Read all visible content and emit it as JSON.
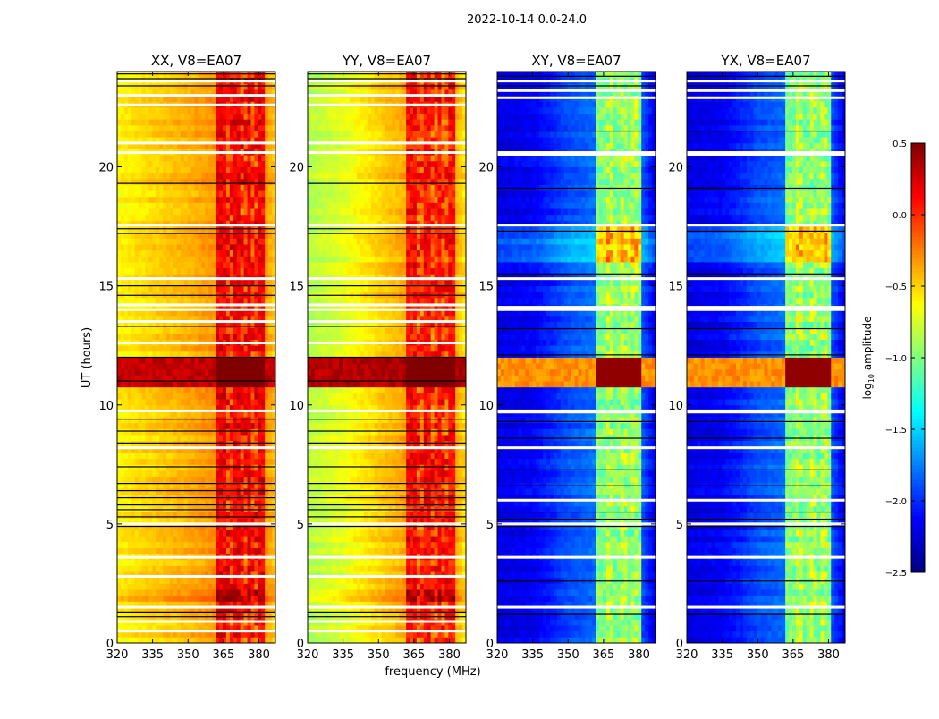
{
  "chart_data": {
    "type": "heatmap",
    "title": "2022-10-14 0.0-24.0",
    "xlabel": "frequency (MHz)",
    "ylabel": "UT (hours)",
    "xlim": [
      320,
      387
    ],
    "ylim": [
      0,
      24
    ],
    "xticks": [
      320,
      335,
      350,
      365,
      380
    ],
    "yticks": [
      0,
      5,
      10,
      15,
      20
    ],
    "colorbar": {
      "label": "log10 amplitude",
      "label_main": "log",
      "label_sub": "10",
      "label_rest": " amplitude",
      "range": [
        -2.5,
        0.5
      ],
      "ticks": [
        "0.5",
        "0.0",
        "−0.5",
        "−1.0",
        "−1.5",
        "−2.0",
        "−2.5"
      ],
      "tick_values": [
        0.5,
        0.0,
        -0.5,
        -1.0,
        -1.5,
        -2.0,
        -2.5
      ],
      "colormap": "jet"
    },
    "panels": [
      {
        "title": "XX, V8=EA07",
        "base_freq": [
          320,
          335,
          350,
          362,
          382,
          387
        ],
        "base_level": [
          -0.6,
          -0.5,
          -0.4,
          -0.3,
          -0.3,
          -0.45
        ],
        "band_range": [
          362,
          382
        ],
        "band_level": 0.15,
        "stripe_offset": -0.3,
        "rfi_hours": [
          10.8,
          11.9
        ],
        "rfi_level": 0.3,
        "rfi_band_level": 0.5,
        "bright_hours": [
          1.8,
          2.3
        ],
        "bright_offset": 0.25,
        "flagged_hours": [
          23.6,
          23.0,
          22.6,
          21.0,
          20.6,
          17.55,
          15.3,
          14.2,
          14.0,
          13.5,
          12.6,
          9.75,
          8.2,
          5.0,
          3.6,
          2.8,
          1.5,
          0.9,
          0.5
        ],
        "black_line_hours": [
          23.9,
          23.7,
          23.4,
          19.3,
          17.4,
          17.2,
          15.0,
          14.6,
          13.3,
          12.0,
          11.0,
          9.4,
          8.9,
          8.4,
          7.4,
          6.7,
          6.4,
          6.1,
          5.8,
          5.6,
          5.3,
          4.9,
          1.3,
          1.1
        ]
      },
      {
        "title": "YY, V8=EA07",
        "base_freq": [
          320,
          335,
          350,
          362,
          382,
          387
        ],
        "base_level": [
          -0.85,
          -0.7,
          -0.5,
          -0.35,
          -0.35,
          -0.55
        ],
        "band_range": [
          362,
          382
        ],
        "band_level": 0.1,
        "stripe_offset": -0.3,
        "rfi_hours": [
          10.8,
          11.9
        ],
        "rfi_level": 0.35,
        "rfi_band_level": 0.5,
        "bright_hours": [
          1.8,
          2.3
        ],
        "bright_offset": 0.3,
        "flagged_hours": [
          23.6,
          23.0,
          22.6,
          21.0,
          20.6,
          17.55,
          15.3,
          14.2,
          14.0,
          13.5,
          12.6,
          9.75,
          8.2,
          5.0,
          3.6,
          2.8,
          1.5,
          0.9,
          0.5
        ],
        "black_line_hours": [
          23.9,
          23.7,
          23.4,
          19.3,
          17.4,
          17.2,
          15.0,
          14.6,
          13.3,
          12.0,
          11.0,
          9.4,
          8.9,
          8.4,
          7.4,
          6.7,
          6.4,
          6.1,
          5.8,
          5.6,
          5.3,
          4.9,
          1.3,
          1.1
        ]
      },
      {
        "title": "XY, V8=EA07",
        "base_freq": [
          320,
          335,
          350,
          362,
          382,
          387
        ],
        "base_level": [
          -2.2,
          -2.15,
          -1.9,
          -1.8,
          -1.9,
          -2.2
        ],
        "band_range": [
          362,
          381
        ],
        "band_level": -1.0,
        "stripe_offset": 0.25,
        "rfi_hours": [
          10.8,
          11.9
        ],
        "rfi_level": -0.3,
        "rfi_band_level": 0.45,
        "bright_hours": [
          16.0,
          17.4
        ],
        "bright_offset": 0.5,
        "flagged_hours": [
          23.6,
          23.2,
          22.9,
          20.6,
          20.5,
          17.55,
          15.3,
          14.1,
          14.0,
          9.75,
          9.7,
          8.2,
          6.0,
          5.0,
          3.6,
          1.5
        ],
        "black_line_hours": [
          23.8,
          23.4,
          21.5,
          19.1,
          17.3,
          15.5,
          13.2,
          12.1,
          9.3,
          8.6,
          7.3,
          6.6,
          5.5,
          5.2,
          4.9,
          2.6,
          1.2
        ]
      },
      {
        "title": "YX, V8=EA07",
        "base_freq": [
          320,
          335,
          350,
          362,
          382,
          387
        ],
        "base_level": [
          -2.2,
          -2.15,
          -1.9,
          -1.8,
          -1.9,
          -2.2
        ],
        "band_range": [
          362,
          381
        ],
        "band_level": -1.0,
        "stripe_offset": 0.25,
        "rfi_hours": [
          10.8,
          11.9
        ],
        "rfi_level": -0.3,
        "rfi_band_level": 0.45,
        "bright_hours": [
          16.0,
          17.4
        ],
        "bright_offset": 0.5,
        "flagged_hours": [
          23.6,
          23.2,
          22.9,
          20.6,
          20.5,
          17.55,
          15.3,
          14.1,
          14.0,
          9.75,
          9.7,
          8.2,
          6.0,
          5.0,
          3.6,
          1.5
        ],
        "black_line_hours": [
          23.8,
          23.4,
          21.5,
          19.1,
          17.3,
          15.5,
          13.2,
          12.1,
          9.3,
          8.6,
          7.3,
          6.6,
          5.5,
          5.2,
          4.9,
          2.6,
          1.2
        ]
      }
    ]
  }
}
